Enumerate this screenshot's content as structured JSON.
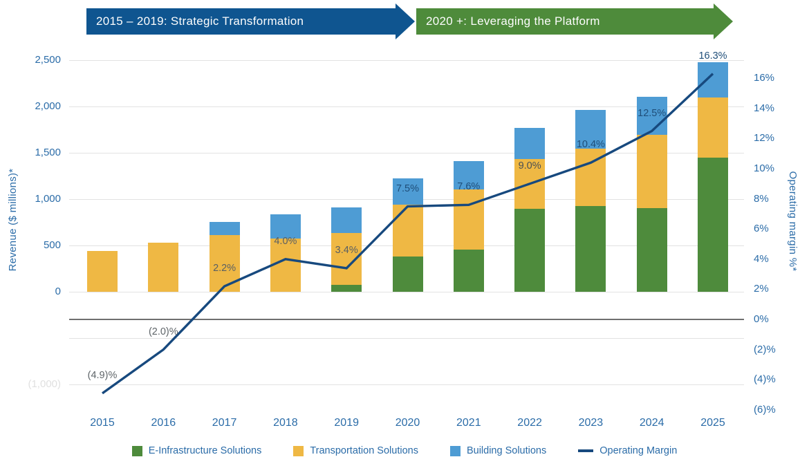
{
  "banners": [
    {
      "label": "2015 – 2019: Strategic Transformation",
      "color": "#0F5590"
    },
    {
      "label": "2020 +: Leveraging the Platform",
      "color": "#4E8B3B"
    }
  ],
  "left_axis": {
    "title": "Revenue ($ millions)*",
    "ticks": [
      "2,500",
      "2,000",
      "1,500",
      "1,000",
      "500",
      "0"
    ],
    "tick_values": [
      2500,
      2000,
      1500,
      1000,
      500,
      0
    ],
    "faded_tick": "(1,000)",
    "faded_tick_value": -1000
  },
  "right_axis": {
    "title": "Operating margin  %*",
    "ticks": [
      "16%",
      "14%",
      "12%",
      "10%",
      "8%",
      "6%",
      "4%",
      "2%",
      "0%",
      "(2)%",
      "(4)%",
      "(6)%"
    ],
    "tick_values": [
      16,
      14,
      12,
      10,
      8,
      6,
      4,
      2,
      0,
      -2,
      -4,
      -6
    ]
  },
  "legend": {
    "items": [
      {
        "label": "E-Infrastructure Solutions",
        "type": "square",
        "color": "#4E8B3C"
      },
      {
        "label": "Transportation Solutions",
        "type": "square",
        "color": "#EFB844"
      },
      {
        "label": "Building Solutions",
        "type": "square",
        "color": "#4E9CD4"
      },
      {
        "label": "Operating Margin",
        "type": "line",
        "color": "#17497E"
      }
    ]
  },
  "chart_data": {
    "type": "bar",
    "subtype": "stacked-bars-with-line-overlay",
    "categories": [
      "2015",
      "2016",
      "2017",
      "2018",
      "2019",
      "2020",
      "2021",
      "2022",
      "2023",
      "2024",
      "2025"
    ],
    "series": [
      {
        "name": "E-Infrastructure Solutions",
        "color": "#4E8B3C",
        "values": [
          0,
          0,
          0,
          0,
          75,
          380,
          455,
          895,
          925,
          905,
          1450
        ]
      },
      {
        "name": "Transportation Solutions",
        "color": "#EFB844",
        "values": [
          440,
          530,
          610,
          575,
          560,
          560,
          650,
          540,
          620,
          790,
          650
        ]
      },
      {
        "name": "Building Solutions",
        "color": "#4E9CD4",
        "values": [
          0,
          0,
          145,
          260,
          275,
          285,
          305,
          330,
          415,
          410,
          380
        ]
      }
    ],
    "totals": [
      440,
      530,
      755,
      835,
      910,
      1225,
      1410,
      1765,
      1960,
      2105,
      2480
    ],
    "line": {
      "name": "Operating Margin",
      "color": "#17497E",
      "values": [
        -4.9,
        -2.0,
        2.2,
        4.0,
        3.4,
        7.5,
        7.6,
        9.0,
        10.4,
        12.5,
        16.3
      ],
      "labels": [
        "(4.9)%",
        "(2.0)%",
        "2.2%",
        "4.0%",
        "3.4%",
        "7.5%",
        "7.6%",
        "9.0%",
        "10.4%",
        "12.5%",
        "16.3%"
      ],
      "label_colors": [
        "#5E6468",
        "#5E6468",
        "#595F63",
        "#595F63",
        "#595F63",
        "#1F4E79",
        "#1F4E79",
        "#4A4F53",
        "#1F4E79",
        "#1F4E79",
        "#1F4E79"
      ]
    },
    "ylabel_left": "Revenue ($ millions)*",
    "ylabel_right": "Operating margin %*",
    "ylim_left": [
      -1000,
      2500
    ],
    "ylim_right": [
      -6,
      16
    ],
    "grid": "horizontal gridlines every 500 (left axis); dark line at 0% (right axis)",
    "legend_position": "bottom"
  }
}
